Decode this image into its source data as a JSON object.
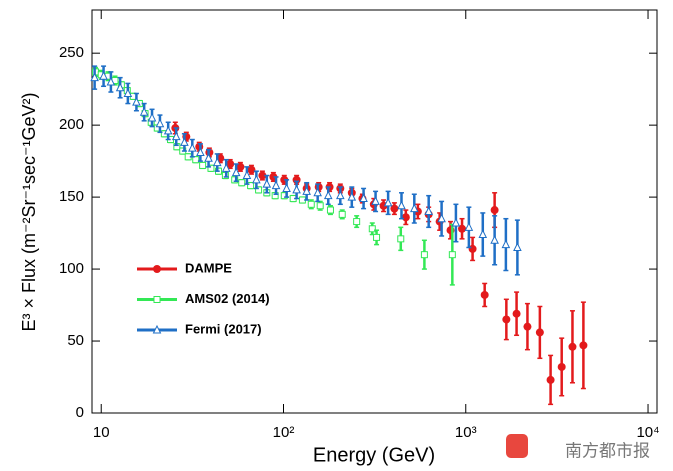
{
  "chart_data": {
    "type": "errorbar-scatter",
    "x_label": "Energy (GeV)",
    "y_label": "E³ × Flux   (m⁻²Sr⁻¹sec⁻¹GeV²)",
    "xscale": "log",
    "xlim": [
      8.9,
      11200
    ],
    "ylim": [
      0,
      280
    ],
    "xticks": [
      10,
      {
        "value": 100,
        "label": "10²"
      },
      {
        "value": 1000,
        "label": "10³"
      },
      {
        "value": 10000,
        "label": "10⁴"
      }
    ],
    "yticks": [
      0,
      50,
      100,
      150,
      200,
      250
    ],
    "legend_position": "center left",
    "series": [
      {
        "name": "DAMPE",
        "color": "#e31a1c",
        "marker": "filled-circle",
        "x": [
          25.5,
          29.3,
          34.5,
          39.2,
          45,
          51,
          58,
          66.7,
          76.6,
          88,
          101,
          118,
          134,
          156,
          179,
          205,
          237,
          271,
          313,
          354,
          406,
          469,
          546,
          626,
          719,
          825,
          954,
          1090,
          1270,
          1440,
          1670,
          1900,
          2180,
          2550,
          2920,
          3360,
          3850,
          4420
        ],
        "values": [
          198,
          192,
          185,
          181,
          177,
          173,
          171,
          169,
          165,
          164,
          162,
          162,
          156,
          157,
          157,
          156,
          153,
          149,
          145,
          144,
          142,
          136,
          140,
          138,
          133,
          127,
          128,
          114,
          82,
          141,
          65,
          69,
          60,
          56,
          23,
          32,
          46,
          47
        ],
        "errors": [
          4,
          3,
          3,
          3,
          3,
          3,
          3,
          3,
          3,
          3,
          3,
          3,
          3,
          3,
          3,
          3,
          3,
          3,
          4,
          4,
          4,
          5,
          5,
          5,
          6,
          6,
          7,
          8,
          8,
          12,
          14,
          15,
          16,
          18,
          17,
          20,
          25,
          30
        ]
      },
      {
        "name": "AMS02 (2014)",
        "color": "#33e855",
        "marker": "open-square",
        "x": [
          9.3,
          10,
          10.9,
          11.9,
          12.9,
          13.9,
          15,
          16.2,
          17.4,
          18.8,
          20.3,
          22.2,
          24,
          26,
          28,
          30,
          33,
          36,
          40,
          44,
          48,
          54,
          59,
          66,
          73,
          81,
          90,
          101,
          113,
          127,
          142,
          159,
          181,
          210,
          252,
          307,
          324,
          440,
          593,
          844
        ],
        "values": [
          237,
          235,
          234,
          231,
          228,
          224,
          220,
          215,
          208,
          202,
          198,
          194,
          190,
          185,
          182,
          178,
          176,
          172,
          170,
          168,
          165,
          162,
          160,
          158,
          155,
          153,
          151,
          151,
          149,
          148,
          145,
          144,
          141,
          138,
          133,
          128,
          122,
          121,
          110,
          110
        ],
        "errors": [
          3,
          3,
          3,
          3,
          2,
          2,
          2,
          2,
          2,
          2,
          2,
          2,
          2,
          2,
          2,
          2,
          2,
          2,
          2,
          2,
          2,
          2,
          2,
          2,
          2,
          2,
          2,
          2,
          2,
          2,
          3,
          3,
          3,
          3,
          4,
          4,
          5,
          8,
          10,
          21
        ]
      },
      {
        "name": "Fermi (2017)",
        "color": "#1f6fc6",
        "marker": "open-triangle",
        "x": [
          9.2,
          10.3,
          11.3,
          12.7,
          14,
          15.6,
          17.2,
          19,
          21,
          23.3,
          25.8,
          28.6,
          31.6,
          35,
          38.8,
          43.3,
          48.5,
          55,
          63,
          71,
          81,
          91,
          104,
          118,
          134,
          154,
          176,
          205,
          237,
          275,
          320,
          375,
          444,
          522,
          626,
          737,
          883,
          1040,
          1240,
          1440,
          1660,
          1920
        ],
        "values": [
          233,
          234,
          230,
          226,
          222,
          216,
          209,
          205,
          201,
          196,
          192,
          188,
          184,
          181,
          177,
          174,
          170,
          167,
          165,
          162,
          159,
          158,
          156,
          155,
          154,
          153,
          151,
          151,
          150,
          149,
          147,
          146,
          144,
          142,
          140,
          135,
          132,
          129,
          124,
          120,
          117,
          115
        ],
        "errors": [
          8,
          7,
          7,
          7,
          7,
          6,
          6,
          6,
          6,
          6,
          6,
          6,
          6,
          6,
          6,
          6,
          6,
          6,
          6,
          6,
          6,
          6,
          6,
          6,
          6,
          6,
          6,
          6,
          7,
          7,
          7,
          8,
          9,
          10,
          11,
          12,
          13,
          14,
          15,
          17,
          18,
          19
        ]
      }
    ]
  },
  "watermark": {
    "text": "南方都市报"
  }
}
